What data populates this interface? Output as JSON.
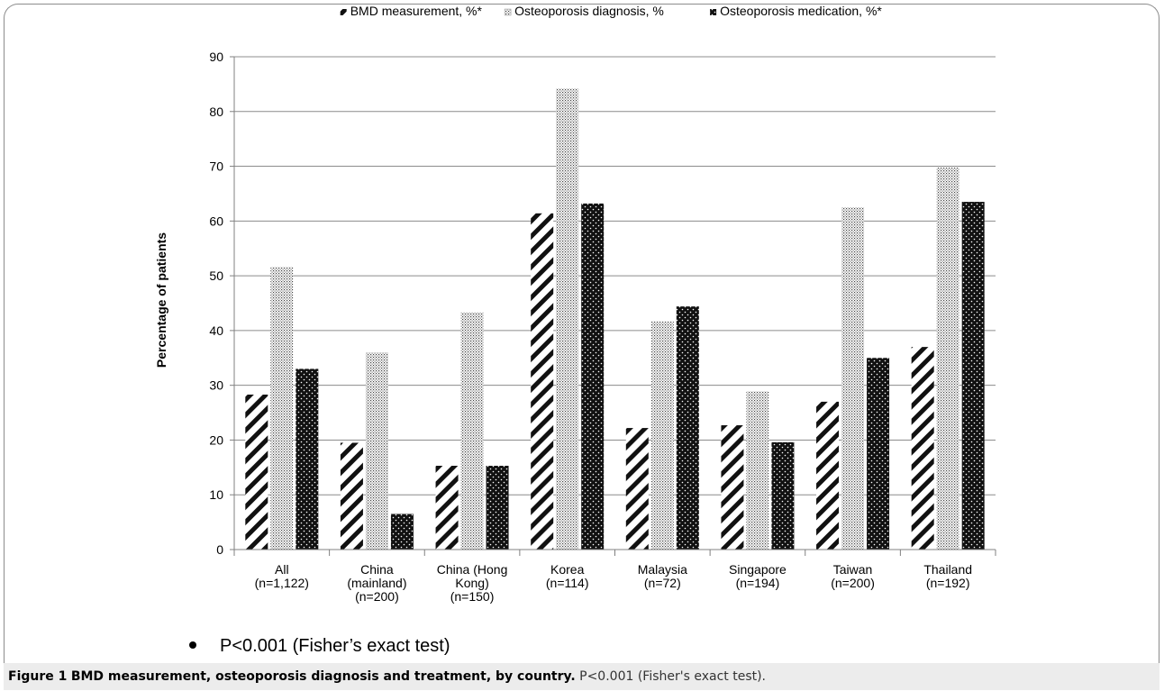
{
  "chart_data": {
    "type": "bar",
    "ylabel": "Percentage of patients",
    "ylim": [
      0,
      90
    ],
    "yticks": [
      0,
      10,
      20,
      30,
      40,
      50,
      60,
      70,
      80,
      90
    ],
    "grid": true,
    "legend_position": "top",
    "categories": [
      [
        "All",
        "(n=1,122)"
      ],
      [
        "China",
        "(mainland)",
        "(n=200)"
      ],
      [
        "China (Hong",
        "Kong)",
        "(n=150)"
      ],
      [
        "Korea",
        "(n=114)"
      ],
      [
        "Malaysia",
        "(n=72)"
      ],
      [
        "Singapore",
        "(n=194)"
      ],
      [
        "Taiwan",
        "(n=200)"
      ],
      [
        "Thailand",
        "(n=192)"
      ]
    ],
    "series": [
      {
        "name": "BMD measurement, %*",
        "pattern": "diagonal-stripes",
        "values": [
          28.3,
          19.5,
          15.3,
          61.4,
          22.2,
          22.7,
          27.0,
          37.0
        ]
      },
      {
        "name": "Osteoporosis diagnosis, %",
        "pattern": "fine-dots",
        "values": [
          51.6,
          36.0,
          43.3,
          84.2,
          41.7,
          28.9,
          62.5,
          69.8
        ]
      },
      {
        "name": "Osteoporosis medication, %*",
        "pattern": "dark-with-white-dots",
        "values": [
          33.0,
          6.5,
          15.3,
          63.2,
          44.4,
          19.6,
          35.0,
          63.5
        ]
      }
    ]
  },
  "footnote": {
    "text": "P<0.001 (Fisher’s exact test)"
  },
  "caption": {
    "label": "Figure 1",
    "title": "BMD measurement, osteoporosis diagnosis and treatment, by country.",
    "note": "P<0.001 (Fisher's exact test)."
  },
  "colors": {
    "axis": "#808080",
    "grid": "#8c8c8c",
    "bar_dark": "#111111",
    "caption_bg": "#ececec"
  }
}
